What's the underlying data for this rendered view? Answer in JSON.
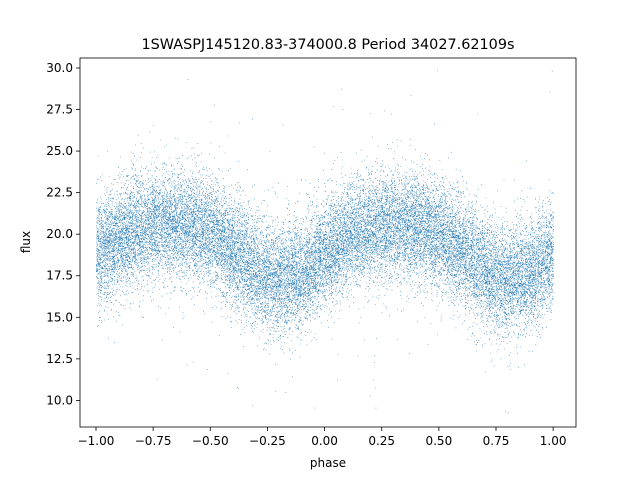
{
  "chart_data": {
    "type": "scatter",
    "title": "1SWASPJ145120.83-374000.8 Period 34027.62109s",
    "xlabel": "phase",
    "ylabel": "flux",
    "xlim": [
      -1.07,
      1.1
    ],
    "ylim": [
      8.4,
      30.6
    ],
    "x_ticks": [
      -1.0,
      -0.75,
      -0.5,
      -0.25,
      0.0,
      0.25,
      0.5,
      0.75,
      1.0
    ],
    "x_tick_labels": [
      "−1.00",
      "−0.75",
      "−0.50",
      "−0.25",
      "0.00",
      "0.25",
      "0.50",
      "0.75",
      "1.00"
    ],
    "y_ticks": [
      10.0,
      12.5,
      15.0,
      17.5,
      20.0,
      22.5,
      25.0,
      27.5,
      30.0
    ],
    "y_tick_labels": [
      "10.0",
      "12.5",
      "15.0",
      "17.5",
      "20.0",
      "22.5",
      "25.0",
      "27.5",
      "30.0"
    ],
    "grid": false,
    "legend": "none",
    "marker_color": "#1f77b4",
    "series": [
      {
        "x_range": [
          -1.0,
          1.0
        ],
        "curve_phase": [
          -1.0,
          -0.9,
          -0.8,
          -0.7,
          -0.6,
          -0.5,
          -0.4,
          -0.3,
          -0.2,
          -0.1,
          0.0,
          0.1,
          0.2,
          0.3,
          0.4,
          0.5,
          0.6,
          0.7,
          0.8,
          0.9,
          1.0
        ],
        "curve_flux": [
          18.8,
          19.8,
          20.4,
          20.6,
          20.5,
          20.0,
          19.0,
          17.8,
          17.2,
          17.6,
          18.8,
          19.8,
          20.4,
          20.6,
          20.5,
          20.0,
          19.0,
          17.8,
          17.2,
          17.6,
          18.8
        ],
        "point_count": 26000,
        "spread": 1.6
      }
    ]
  }
}
